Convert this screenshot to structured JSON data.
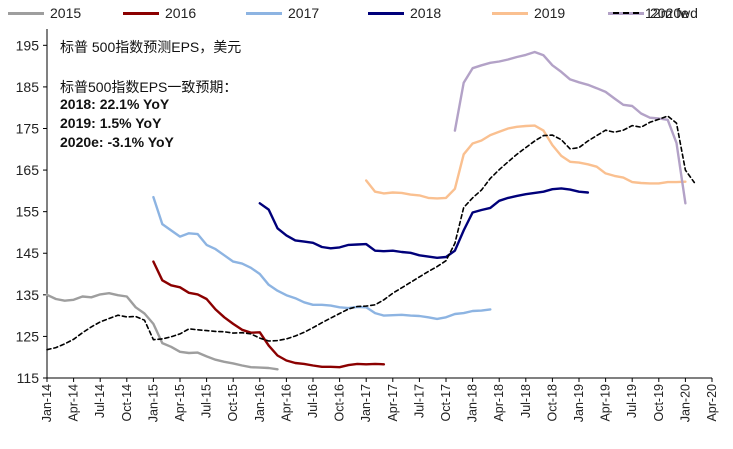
{
  "chart_data": {
    "type": "line",
    "title": "",
    "xlabel": "",
    "ylabel": "",
    "ylim": [
      115,
      197
    ],
    "yticks": [
      115,
      125,
      135,
      145,
      155,
      165,
      175,
      185,
      195
    ],
    "x_range": [
      "2014-01",
      "2020-04"
    ],
    "x_tick_labels": [
      "Jan-14",
      "Apr-14",
      "Jul-14",
      "Oct-14",
      "Jan-15",
      "Apr-15",
      "Jul-15",
      "Oct-15",
      "Jan-16",
      "Apr-16",
      "Jul-16",
      "Oct-16",
      "Jan-17",
      "Apr-17",
      "Jul-17",
      "Oct-17",
      "Jan-18",
      "Apr-18",
      "Jul-18",
      "Oct-18",
      "Jan-19",
      "Apr-19",
      "Jul-19",
      "Oct-19",
      "Jan-20",
      "Apr-20"
    ],
    "annotations": {
      "line1": "标普 500指数预测EPS，美元",
      "line2": "标普500指数EPS一致预期：",
      "line3": "2018: 22.1% YoY",
      "line4": "2019: 1.5% YoY",
      "line5": "2020e: -3.1% YoY"
    },
    "series": [
      {
        "name": "2015",
        "color": "#9e9e9e",
        "dash": false,
        "points": [
          [
            0,
            135
          ],
          [
            1,
            134
          ],
          [
            2,
            133.6
          ],
          [
            3,
            133.8
          ],
          [
            4,
            134.6
          ],
          [
            5,
            134.4
          ],
          [
            6,
            135.1
          ],
          [
            7,
            135.4
          ],
          [
            8,
            134.9
          ],
          [
            9,
            134.6
          ],
          [
            10,
            132
          ],
          [
            11,
            130.5
          ],
          [
            12,
            128
          ],
          [
            13,
            123.4
          ],
          [
            14,
            122.5
          ],
          [
            15,
            121.3
          ],
          [
            16,
            121
          ],
          [
            17,
            121.1
          ],
          [
            18,
            120.2
          ],
          [
            19,
            119.4
          ],
          [
            20,
            118.9
          ],
          [
            21,
            118.5
          ],
          [
            22,
            118
          ],
          [
            23,
            117.6
          ],
          [
            24,
            117.5
          ],
          [
            25,
            117.4
          ],
          [
            26,
            117.1
          ]
        ]
      },
      {
        "name": "2016",
        "color": "#8b0000",
        "dash": false,
        "points": [
          [
            12,
            143
          ],
          [
            13,
            138.5
          ],
          [
            14,
            137.3
          ],
          [
            15,
            136.8
          ],
          [
            16,
            135.5
          ],
          [
            17,
            135.1
          ],
          [
            18,
            134
          ],
          [
            19,
            131.5
          ],
          [
            20,
            129.6
          ],
          [
            21,
            128
          ],
          [
            22,
            126.6
          ],
          [
            23,
            125.9
          ],
          [
            24,
            126
          ],
          [
            25,
            122.8
          ],
          [
            26,
            120.4
          ],
          [
            27,
            119.2
          ],
          [
            28,
            118.6
          ],
          [
            29,
            118.4
          ],
          [
            30,
            118
          ],
          [
            31,
            117.7
          ],
          [
            32,
            117.7
          ],
          [
            33,
            117.6
          ],
          [
            34,
            118.1
          ],
          [
            35,
            118.4
          ],
          [
            36,
            118.3
          ],
          [
            37,
            118.4
          ],
          [
            38,
            118.3
          ]
        ]
      },
      {
        "name": "2017",
        "color": "#8db4e2",
        "dash": false,
        "points": [
          [
            12,
            158.5
          ],
          [
            13,
            152
          ],
          [
            14,
            150.5
          ],
          [
            15,
            149
          ],
          [
            16,
            149.8
          ],
          [
            17,
            149.6
          ],
          [
            18,
            147
          ],
          [
            19,
            146
          ],
          [
            20,
            144.5
          ],
          [
            21,
            143
          ],
          [
            22,
            142.5
          ],
          [
            23,
            141.5
          ],
          [
            24,
            140
          ],
          [
            25,
            137.4
          ],
          [
            26,
            136
          ],
          [
            27,
            134.9
          ],
          [
            28,
            134.2
          ],
          [
            29,
            133.2
          ],
          [
            30,
            132.6
          ],
          [
            31,
            132.6
          ],
          [
            32,
            132.4
          ],
          [
            33,
            132
          ],
          [
            34,
            131.8
          ],
          [
            35,
            132.1
          ],
          [
            36,
            132
          ],
          [
            37,
            130.6
          ],
          [
            38,
            130
          ],
          [
            39,
            130.1
          ],
          [
            40,
            130.2
          ],
          [
            41,
            130
          ],
          [
            42,
            129.9
          ],
          [
            43,
            129.6
          ],
          [
            44,
            129.2
          ],
          [
            45,
            129.6
          ],
          [
            46,
            130.4
          ],
          [
            47,
            130.6
          ],
          [
            48,
            131.1
          ],
          [
            49,
            131.2
          ],
          [
            50,
            131.5
          ]
        ]
      },
      {
        "name": "2018",
        "color": "#00007a",
        "dash": false,
        "points": [
          [
            24,
            157
          ],
          [
            25,
            155.5
          ],
          [
            26,
            151
          ],
          [
            27,
            149.3
          ],
          [
            28,
            148.1
          ],
          [
            29,
            147.8
          ],
          [
            30,
            147.5
          ],
          [
            31,
            146.5
          ],
          [
            32,
            146.2
          ],
          [
            33,
            146.4
          ],
          [
            34,
            147
          ],
          [
            35,
            147.1
          ],
          [
            36,
            147.2
          ],
          [
            37,
            145.6
          ],
          [
            38,
            145.5
          ],
          [
            39,
            145.6
          ],
          [
            40,
            145.3
          ],
          [
            41,
            145.1
          ],
          [
            42,
            144.5
          ],
          [
            43,
            144.2
          ],
          [
            44,
            143.9
          ],
          [
            45,
            144.1
          ],
          [
            46,
            145.6
          ],
          [
            47,
            150.5
          ],
          [
            48,
            154.8
          ],
          [
            49,
            155.4
          ],
          [
            50,
            155.9
          ],
          [
            51,
            157.6
          ],
          [
            52,
            158.3
          ],
          [
            53,
            158.8
          ],
          [
            54,
            159.2
          ],
          [
            55,
            159.5
          ],
          [
            56,
            159.8
          ],
          [
            57,
            160.4
          ],
          [
            58,
            160.6
          ],
          [
            59,
            160.3
          ],
          [
            60,
            159.8
          ],
          [
            61,
            159.6
          ]
        ]
      },
      {
        "name": "2019",
        "color": "#fac090",
        "dash": false,
        "points": [
          [
            36,
            162.5
          ],
          [
            37,
            159.8
          ],
          [
            38,
            159.4
          ],
          [
            39,
            159.6
          ],
          [
            40,
            159.5
          ],
          [
            41,
            159.1
          ],
          [
            42,
            158.9
          ],
          [
            43,
            158.3
          ],
          [
            44,
            158.2
          ],
          [
            45,
            158.3
          ],
          [
            46,
            160.5
          ],
          [
            47,
            168.8
          ],
          [
            48,
            171.4
          ],
          [
            49,
            172.1
          ],
          [
            50,
            173.4
          ],
          [
            51,
            174.2
          ],
          [
            52,
            175
          ],
          [
            53,
            175.4
          ],
          [
            54,
            175.6
          ],
          [
            55,
            175.7
          ],
          [
            56,
            174.5
          ],
          [
            57,
            171
          ],
          [
            58,
            168.4
          ],
          [
            59,
            167
          ],
          [
            60,
            166.8
          ],
          [
            61,
            166.4
          ],
          [
            62,
            165.8
          ],
          [
            63,
            164.2
          ],
          [
            64,
            163.6
          ],
          [
            65,
            163.2
          ],
          [
            66,
            162.1
          ],
          [
            67,
            161.9
          ],
          [
            68,
            161.8
          ],
          [
            69,
            161.8
          ],
          [
            70,
            162.1
          ],
          [
            71,
            162.1
          ],
          [
            72,
            162.2
          ]
        ]
      },
      {
        "name": "2020e",
        "color": "#b3a2c7",
        "dash": false,
        "points": [
          [
            46,
            174.5
          ],
          [
            47,
            186
          ],
          [
            48,
            189.5
          ],
          [
            49,
            190.2
          ],
          [
            50,
            190.8
          ],
          [
            51,
            191.1
          ],
          [
            52,
            191.6
          ],
          [
            53,
            192.2
          ],
          [
            54,
            192.7
          ],
          [
            55,
            193.4
          ],
          [
            56,
            192.6
          ],
          [
            57,
            190.2
          ],
          [
            58,
            188.6
          ],
          [
            59,
            186.8
          ],
          [
            60,
            186.1
          ],
          [
            61,
            185.5
          ],
          [
            62,
            184.7
          ],
          [
            63,
            183.8
          ],
          [
            64,
            182.2
          ],
          [
            65,
            180.7
          ],
          [
            66,
            180.4
          ],
          [
            67,
            178.6
          ],
          [
            68,
            177.6
          ],
          [
            69,
            177.4
          ],
          [
            70,
            177.1
          ],
          [
            71,
            171.5
          ],
          [
            72,
            157
          ]
        ]
      },
      {
        "name": "12m fwd",
        "color": "#000000",
        "dash": true,
        "points": [
          [
            0,
            121.8
          ],
          [
            1,
            122.3
          ],
          [
            2,
            123.2
          ],
          [
            3,
            124.3
          ],
          [
            4,
            125.9
          ],
          [
            5,
            127.3
          ],
          [
            6,
            128.5
          ],
          [
            7,
            129.3
          ],
          [
            8,
            130.1
          ],
          [
            9,
            129.7
          ],
          [
            10,
            129.8
          ],
          [
            11,
            128.9
          ],
          [
            12,
            124.2
          ],
          [
            13,
            124.4
          ],
          [
            14,
            124.9
          ],
          [
            15,
            125.6
          ],
          [
            16,
            126.8
          ],
          [
            17,
            126.6
          ],
          [
            18,
            126.4
          ],
          [
            19,
            126.2
          ],
          [
            20,
            126.1
          ],
          [
            21,
            125.8
          ],
          [
            22,
            125.9
          ],
          [
            23,
            125.6
          ],
          [
            24,
            124.6
          ],
          [
            25,
            123.9
          ],
          [
            26,
            124
          ],
          [
            27,
            124.4
          ],
          [
            28,
            125.1
          ],
          [
            29,
            126
          ],
          [
            30,
            127.1
          ],
          [
            31,
            128.3
          ],
          [
            32,
            129.4
          ],
          [
            33,
            130.5
          ],
          [
            34,
            131.6
          ],
          [
            35,
            132.2
          ],
          [
            36,
            132.3
          ],
          [
            37,
            132.6
          ],
          [
            38,
            133.8
          ],
          [
            39,
            135.4
          ],
          [
            40,
            136.7
          ],
          [
            41,
            138
          ],
          [
            42,
            139.3
          ],
          [
            43,
            140.6
          ],
          [
            44,
            141.8
          ],
          [
            45,
            143.2
          ],
          [
            46,
            147.4
          ],
          [
            47,
            156
          ],
          [
            48,
            158.3
          ],
          [
            49,
            160.2
          ],
          [
            50,
            163
          ],
          [
            51,
            165.1
          ],
          [
            52,
            167
          ],
          [
            53,
            168.8
          ],
          [
            54,
            170.4
          ],
          [
            55,
            172
          ],
          [
            56,
            173.3
          ],
          [
            57,
            173.4
          ],
          [
            58,
            172.3
          ],
          [
            59,
            170.1
          ],
          [
            60,
            170.4
          ],
          [
            61,
            172
          ],
          [
            62,
            173.3
          ],
          [
            63,
            174.6
          ],
          [
            64,
            174.1
          ],
          [
            65,
            174.6
          ],
          [
            66,
            175.7
          ],
          [
            67,
            175.3
          ],
          [
            68,
            176.5
          ],
          [
            69,
            177.2
          ],
          [
            70,
            178
          ],
          [
            71,
            176.3
          ],
          [
            72,
            165
          ],
          [
            73,
            162
          ]
        ]
      }
    ]
  }
}
